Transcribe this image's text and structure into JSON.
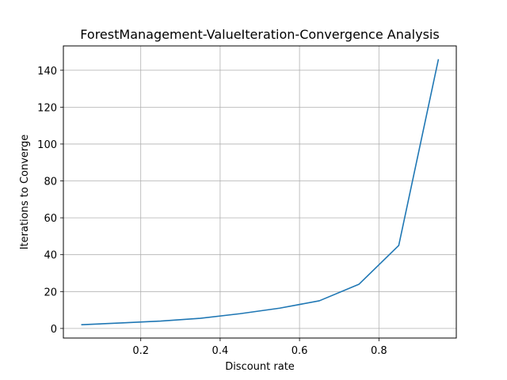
{
  "chart_data": {
    "type": "line",
    "title": "ForestManagement-ValueIteration-Convergence Analysis",
    "xlabel": "Discount rate",
    "ylabel": "Iterations to Converge",
    "xlim": [
      0.005,
      0.995
    ],
    "ylim": [
      -5.2,
      153.2
    ],
    "xticks": [
      0.2,
      0.4,
      0.6,
      0.8
    ],
    "xtick_labels": [
      "0.2",
      "0.4",
      "0.6",
      "0.8"
    ],
    "yticks": [
      0,
      20,
      40,
      60,
      80,
      100,
      120,
      140
    ],
    "ytick_labels": [
      "0",
      "20",
      "40",
      "60",
      "80",
      "100",
      "120",
      "140"
    ],
    "grid": true,
    "series": [
      {
        "color": "#1f77b4",
        "x": [
          0.05,
          0.15,
          0.25,
          0.35,
          0.45,
          0.55,
          0.65,
          0.75,
          0.85,
          0.95
        ],
        "y": [
          2,
          3,
          4,
          5.5,
          8,
          11,
          15,
          24,
          45,
          146
        ]
      }
    ]
  }
}
